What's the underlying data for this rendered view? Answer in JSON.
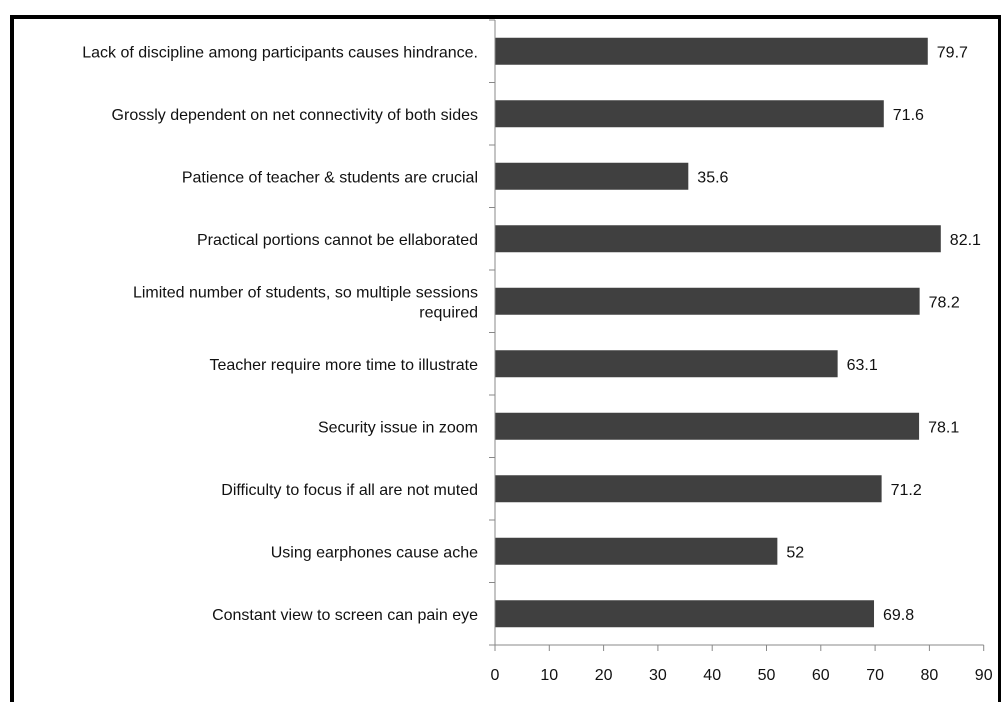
{
  "chart_data": {
    "type": "bar",
    "orientation": "horizontal",
    "categories": [
      [
        "Lack of discipline among participants causes hindrance."
      ],
      [
        "Grossly dependent on net connectivity of both sides"
      ],
      [
        "Patience of teacher & students are crucial"
      ],
      [
        "Practical portions cannot be ellaborated"
      ],
      [
        "Limited number of students, so multiple sessions",
        "required"
      ],
      [
        "Teacher require more time to illustrate"
      ],
      [
        "Security issue in zoom"
      ],
      [
        "Difficulty to focus if all are not muted"
      ],
      [
        "Using earphones cause ache"
      ],
      [
        "Constant view to screen can pain eye"
      ]
    ],
    "values": [
      79.7,
      71.6,
      35.6,
      82.1,
      78.2,
      63.1,
      78.1,
      71.2,
      52,
      69.8
    ],
    "value_labels": [
      "79.7",
      "71.6",
      "35.6",
      "82.1",
      "78.2",
      "63.1",
      "78.1",
      "71.2",
      "52",
      "69.8"
    ],
    "xlim": [
      0,
      90
    ],
    "xticks": [
      0,
      10,
      20,
      30,
      40,
      50,
      60,
      70,
      80,
      90
    ],
    "title": "",
    "xlabel": "",
    "ylabel": "",
    "grid": false,
    "legend": "none",
    "bar_color": "#404040"
  }
}
